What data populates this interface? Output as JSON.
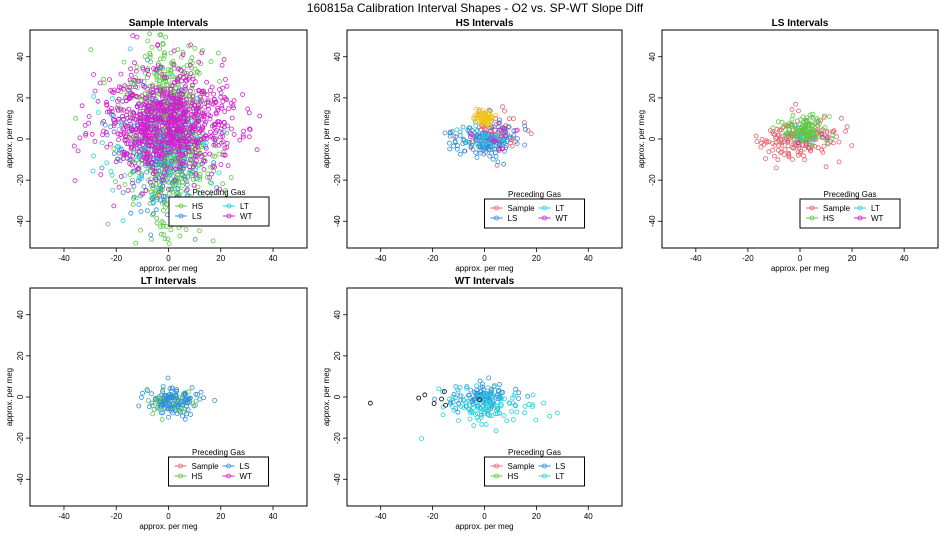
{
  "figure_title": "160815a   Calibration Interval Shapes - O2 vs. SP-WT Slope Diff",
  "colors": {
    "Sample": "#e8606d",
    "HS": "#5cc945",
    "LS": "#2f8fdc",
    "LT": "#22d3df",
    "WT": "#d21ed0",
    "HS_center": "#f2c418",
    "black": "#000000"
  },
  "chart_data": [
    {
      "type": "scatter",
      "title": "Sample Intervals",
      "xlabel": "approx. per meg",
      "ylabel": "approx. per meg",
      "xlim": [
        -53,
        53
      ],
      "ylim": [
        -53,
        53
      ],
      "xticks": [
        -40,
        -20,
        0,
        20,
        40
      ],
      "yticks": [
        -40,
        -20,
        0,
        20,
        40
      ],
      "legend": {
        "title": "Preceding Gas",
        "position": "bottom-right",
        "entries": [
          "HS",
          "LT",
          "LS",
          "WT"
        ]
      },
      "series": [
        {
          "name": "HS",
          "color": "#5cc945",
          "n": 850,
          "center": [
            0,
            2
          ],
          "spread": [
            9,
            26
          ]
        },
        {
          "name": "LS",
          "color": "#2f8fdc",
          "n": 160,
          "center": [
            -3,
            -10
          ],
          "spread": [
            9,
            15
          ]
        },
        {
          "name": "LT",
          "color": "#22d3df",
          "n": 140,
          "center": [
            -4,
            0
          ],
          "spread": [
            14,
            15
          ]
        },
        {
          "name": "WT",
          "color": "#d21ed0",
          "n": 900,
          "center": [
            0,
            8
          ],
          "spread": [
            14,
            14
          ]
        }
      ]
    },
    {
      "type": "scatter",
      "title": "HS Intervals",
      "xlabel": "approx. per meg",
      "ylabel": "approx. per meg",
      "xlim": [
        -53,
        53
      ],
      "ylim": [
        -53,
        53
      ],
      "xticks": [
        -40,
        -20,
        0,
        20,
        40
      ],
      "yticks": [
        -40,
        -20,
        0,
        20,
        40
      ],
      "legend": {
        "title": "Preceding Gas",
        "position": "bottom-center",
        "entries": [
          "Sample",
          "LT",
          "LS",
          "WT"
        ]
      },
      "series": [
        {
          "name": "Sample",
          "color": "#e8606d",
          "n": 90,
          "center": [
            3,
            2
          ],
          "spread": [
            6,
            5
          ]
        },
        {
          "name": "LS",
          "color": "#2f8fdc",
          "n": 150,
          "center": [
            0,
            -1
          ],
          "spread": [
            7,
            5
          ]
        },
        {
          "name": "LT",
          "color": "#22d3df",
          "n": 25,
          "center": [
            0,
            0
          ],
          "spread": [
            6,
            4
          ]
        },
        {
          "name": "WT",
          "color": "#d21ed0",
          "n": 15,
          "center": [
            2,
            2
          ],
          "spread": [
            6,
            4
          ]
        },
        {
          "name": "HS",
          "color": "#f2c418",
          "n": 60,
          "center": [
            0,
            10
          ],
          "spread": [
            2,
            2
          ]
        }
      ]
    },
    {
      "type": "scatter",
      "title": "LS Intervals",
      "xlabel": "approx. per meg",
      "ylabel": "approx. per meg",
      "xlim": [
        -53,
        53
      ],
      "ylim": [
        -53,
        53
      ],
      "xticks": [
        -40,
        -20,
        0,
        20,
        40
      ],
      "yticks": [
        -40,
        -20,
        0,
        20,
        40
      ],
      "legend": {
        "title": "Preceding Gas",
        "position": "bottom-center",
        "entries": [
          "Sample",
          "LT",
          "HS",
          "WT"
        ]
      },
      "series": [
        {
          "name": "Sample",
          "color": "#e8606d",
          "n": 170,
          "center": [
            0,
            0
          ],
          "spread": [
            9,
            6
          ]
        },
        {
          "name": "HS",
          "color": "#5cc945",
          "n": 120,
          "center": [
            2,
            4
          ],
          "spread": [
            5,
            4
          ]
        },
        {
          "name": "LT",
          "color": "#22d3df",
          "n": 4,
          "center": [
            0,
            2
          ],
          "spread": [
            4,
            3
          ]
        },
        {
          "name": "WT",
          "color": "#d21ed0",
          "n": 4,
          "center": [
            2,
            0
          ],
          "spread": [
            5,
            3
          ]
        }
      ]
    },
    {
      "type": "scatter",
      "title": "LT Intervals",
      "xlabel": "approx. per meg",
      "ylabel": "approx. per meg",
      "xlim": [
        -53,
        53
      ],
      "ylim": [
        -53,
        53
      ],
      "xticks": [
        -40,
        -20,
        0,
        20,
        40
      ],
      "yticks": [
        -40,
        -20,
        0,
        20,
        40
      ],
      "legend": {
        "title": "Preceding Gas",
        "position": "bottom-center",
        "entries": [
          "Sample",
          "LS",
          "HS",
          "WT"
        ]
      },
      "series": [
        {
          "name": "HS",
          "color": "#5cc945",
          "n": 60,
          "center": [
            0,
            -3
          ],
          "spread": [
            6,
            4
          ]
        },
        {
          "name": "LS",
          "color": "#2f8fdc",
          "n": 110,
          "center": [
            1,
            -2
          ],
          "spread": [
            6,
            4
          ]
        }
      ]
    },
    {
      "type": "scatter",
      "title": "WT Intervals",
      "xlabel": "approx. per meg",
      "ylabel": "approx. per meg",
      "xlim": [
        -53,
        53
      ],
      "ylim": [
        -53,
        53
      ],
      "xticks": [
        -40,
        -20,
        0,
        20,
        40
      ],
      "yticks": [
        -40,
        -20,
        0,
        20,
        40
      ],
      "legend": {
        "title": "Preceding Gas",
        "position": "bottom-center",
        "entries": [
          "Sample",
          "LS",
          "HS",
          "LT"
        ]
      },
      "series": [
        {
          "name": "LS",
          "color": "#2f8fdc",
          "n": 110,
          "center": [
            0,
            0
          ],
          "spread": [
            7,
            4
          ]
        },
        {
          "name": "LT",
          "color": "#22d3df",
          "n": 110,
          "center": [
            1,
            -4
          ],
          "spread": [
            9,
            7
          ]
        },
        {
          "name": "black",
          "color": "#000000",
          "n": 5,
          "center": [
            -15,
            0
          ],
          "spread": [
            10,
            2
          ]
        }
      ],
      "extra_points": [
        [
          -44,
          -3
        ],
        [
          -23,
          1
        ],
        [
          -15,
          -4
        ]
      ]
    }
  ]
}
